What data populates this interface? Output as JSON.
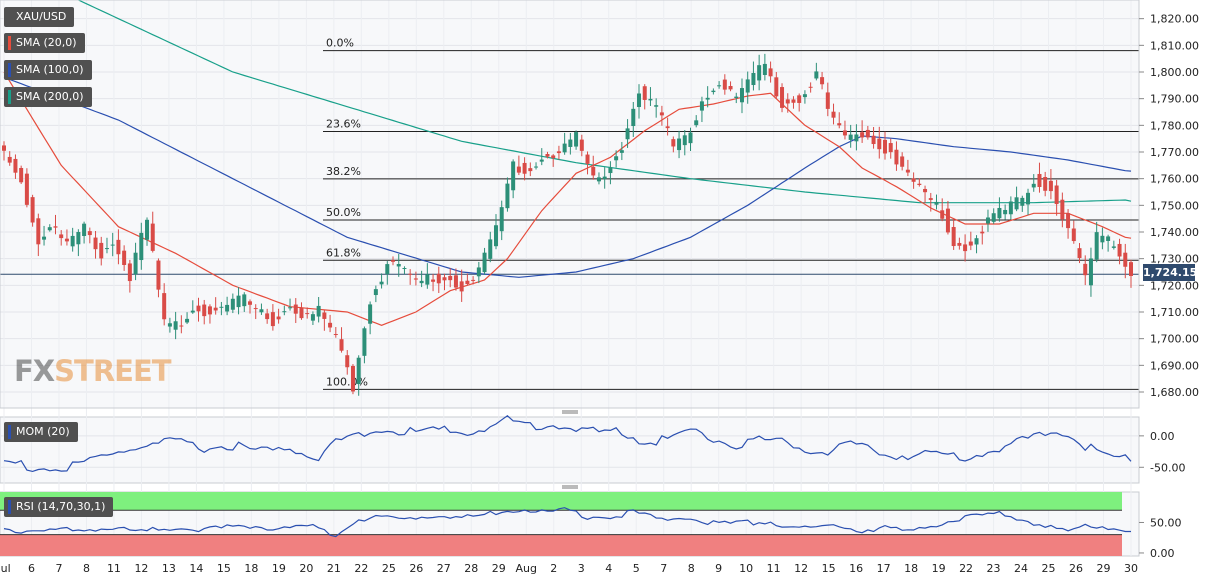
{
  "legend": {
    "symbol": "XAU/USD",
    "sma20": "SMA (20,0)",
    "sma100": "SMA (100,0)",
    "sma200": "SMA (200,0)",
    "mom": "MOM (20)",
    "rsi": "RSI (14,70,30,1)"
  },
  "colors": {
    "up": "#2c8f78",
    "down": "#d94b47",
    "sma20": "#e64c3c",
    "sma100": "#2a4fb0",
    "sma200": "#18a08a",
    "momentum": "#2a4fb0",
    "rsi": "#2a4fb0",
    "overbought_zone": "#7ef07e",
    "oversold_zone": "#f08080"
  },
  "watermark": {
    "part1": "FX",
    "part2": "STREET"
  },
  "last_price": "1,724.15",
  "chart_data": [
    {
      "type": "candlestick",
      "panel": "price",
      "ylim": [
        1674,
        1827
      ],
      "y_ticks": [
        1680,
        1690,
        1700,
        1710,
        1720,
        1730,
        1740,
        1750,
        1760,
        1770,
        1780,
        1790,
        1800,
        1810,
        1820
      ],
      "y_tick_labels": [
        "1,680.00",
        "1,690.00",
        "1,700.00",
        "1,710.00",
        "1,720.00",
        "1,730.00",
        "1,740.00",
        "1,750.00",
        "1,760.00",
        "1,770.00",
        "1,780.00",
        "1,790.00",
        "1,800.00",
        "1,810.00",
        "1,820.00"
      ],
      "x_tick_labels": [
        "Jul",
        "6",
        "7",
        "8",
        "11",
        "12",
        "13",
        "14",
        "15",
        "18",
        "19",
        "20",
        "21",
        "22",
        "25",
        "26",
        "27",
        "28",
        "29",
        "Aug",
        "2",
        "3",
        "4",
        "5",
        "7",
        "8",
        "9",
        "10",
        "11",
        "12",
        "15",
        "16",
        "17",
        "18",
        "19",
        "22",
        "23",
        "24",
        "25",
        "26",
        "29",
        "30"
      ],
      "fibonacci": [
        {
          "label": "0.0%",
          "value": 1808
        },
        {
          "label": "23.6%",
          "value": 1777.7
        },
        {
          "label": "38.2%",
          "value": 1759.9
        },
        {
          "label": "50.0%",
          "value": 1744.5
        },
        {
          "label": "61.8%",
          "value": 1729.4
        },
        {
          "label": "100.0%",
          "value": 1681
        }
      ],
      "current_price": 1724.15,
      "close_anchors": [
        1770,
        1760,
        1736,
        1743,
        1735,
        1741,
        1732,
        1736,
        1724,
        1744,
        1705,
        1706,
        1712,
        1710,
        1712,
        1715,
        1710,
        1707,
        1712,
        1708,
        1710,
        1700,
        1682,
        1715,
        1728,
        1727,
        1721,
        1723,
        1722,
        1720,
        1725,
        1741,
        1765,
        1763,
        1768,
        1770,
        1776,
        1759,
        1761,
        1773,
        1793,
        1786,
        1772,
        1774,
        1789,
        1796,
        1790,
        1797,
        1802,
        1789,
        1790,
        1800,
        1786,
        1775,
        1777,
        1773,
        1770,
        1761,
        1754,
        1747,
        1735,
        1735,
        1745,
        1748,
        1752,
        1760,
        1756,
        1742,
        1722,
        1738,
        1735,
        1724
      ],
      "sma20_anchors": [
        [
          0,
          1800
        ],
        [
          10,
          1765
        ],
        [
          20,
          1742
        ],
        [
          30,
          1732
        ],
        [
          40,
          1720
        ],
        [
          50,
          1712
        ],
        [
          60,
          1710
        ],
        [
          66,
          1705
        ],
        [
          72,
          1710
        ],
        [
          78,
          1718
        ],
        [
          84,
          1722
        ],
        [
          88,
          1730
        ],
        [
          94,
          1748
        ],
        [
          100,
          1762
        ],
        [
          106,
          1768
        ],
        [
          112,
          1778
        ],
        [
          118,
          1786
        ],
        [
          124,
          1788
        ],
        [
          130,
          1791
        ],
        [
          134,
          1792
        ],
        [
          140,
          1780
        ],
        [
          146,
          1772
        ],
        [
          150,
          1764
        ],
        [
          156,
          1757
        ],
        [
          162,
          1749
        ],
        [
          168,
          1743
        ],
        [
          174,
          1743
        ],
        [
          180,
          1747
        ],
        [
          186,
          1747
        ],
        [
          192,
          1742
        ],
        [
          196,
          1738
        ]
      ],
      "sma100_anchors": [
        [
          0,
          1798
        ],
        [
          20,
          1782
        ],
        [
          40,
          1760
        ],
        [
          60,
          1738
        ],
        [
          80,
          1725
        ],
        [
          90,
          1723
        ],
        [
          100,
          1725
        ],
        [
          110,
          1730
        ],
        [
          120,
          1738
        ],
        [
          130,
          1750
        ],
        [
          140,
          1764
        ],
        [
          146,
          1772
        ],
        [
          150,
          1776
        ],
        [
          156,
          1775
        ],
        [
          166,
          1772
        ],
        [
          176,
          1770
        ],
        [
          186,
          1767
        ],
        [
          196,
          1763
        ]
      ],
      "sma200_anchors": [
        [
          0,
          1840
        ],
        [
          20,
          1820
        ],
        [
          40,
          1800
        ],
        [
          60,
          1787
        ],
        [
          80,
          1774
        ],
        [
          100,
          1766
        ],
        [
          120,
          1760
        ],
        [
          140,
          1755
        ],
        [
          160,
          1751
        ],
        [
          180,
          1751
        ],
        [
          196,
          1752
        ]
      ],
      "sma_start_index": {
        "sma20": 0,
        "sma100": 0,
        "sma200": 10
      }
    },
    {
      "type": "line",
      "panel": "momentum",
      "name": "MOM (20)",
      "ylim": [
        -75,
        30
      ],
      "y_ticks": [
        0,
        -50
      ],
      "y_tick_labels": [
        "0.00",
        "-50.00"
      ],
      "anchors": [
        [
          0,
          -40
        ],
        [
          5,
          -50
        ],
        [
          10,
          -55
        ],
        [
          15,
          -40
        ],
        [
          20,
          -25
        ],
        [
          25,
          -15
        ],
        [
          30,
          -10
        ],
        [
          35,
          -20
        ],
        [
          40,
          -15
        ],
        [
          45,
          -25
        ],
        [
          50,
          -20
        ],
        [
          55,
          -35
        ],
        [
          58,
          -10
        ],
        [
          62,
          5
        ],
        [
          66,
          8
        ],
        [
          70,
          5
        ],
        [
          75,
          10
        ],
        [
          80,
          5
        ],
        [
          85,
          15
        ],
        [
          88,
          25
        ],
        [
          92,
          15
        ],
        [
          96,
          20
        ],
        [
          100,
          10
        ],
        [
          104,
          5
        ],
        [
          108,
          8
        ],
        [
          112,
          -10
        ],
        [
          116,
          -5
        ],
        [
          120,
          10
        ],
        [
          124,
          -5
        ],
        [
          128,
          -15
        ],
        [
          132,
          -5
        ],
        [
          136,
          -10
        ],
        [
          140,
          -20
        ],
        [
          144,
          -25
        ],
        [
          148,
          -15
        ],
        [
          152,
          -25
        ],
        [
          156,
          -30
        ],
        [
          160,
          -32
        ],
        [
          164,
          -28
        ],
        [
          168,
          -35
        ],
        [
          172,
          -25
        ],
        [
          176,
          -15
        ],
        [
          180,
          0
        ],
        [
          184,
          10
        ],
        [
          188,
          -10
        ],
        [
          192,
          -30
        ],
        [
          196,
          -35
        ]
      ]
    },
    {
      "type": "line",
      "panel": "rsi",
      "name": "RSI (14,70,30,1)",
      "ylim": [
        -5,
        100
      ],
      "y_ticks": [
        50,
        0
      ],
      "y_tick_labels": [
        "50.00",
        "0.00"
      ],
      "overbought": 70,
      "oversold": 30,
      "anchors": [
        [
          0,
          40
        ],
        [
          6,
          35
        ],
        [
          12,
          38
        ],
        [
          18,
          40
        ],
        [
          24,
          35
        ],
        [
          30,
          42
        ],
        [
          36,
          38
        ],
        [
          42,
          45
        ],
        [
          48,
          40
        ],
        [
          54,
          42
        ],
        [
          58,
          30
        ],
        [
          62,
          55
        ],
        [
          66,
          58
        ],
        [
          70,
          55
        ],
        [
          75,
          62
        ],
        [
          80,
          58
        ],
        [
          86,
          65
        ],
        [
          90,
          72
        ],
        [
          94,
          66
        ],
        [
          98,
          70
        ],
        [
          102,
          60
        ],
        [
          106,
          58
        ],
        [
          110,
          68
        ],
        [
          114,
          56
        ],
        [
          118,
          60
        ],
        [
          122,
          52
        ],
        [
          126,
          48
        ],
        [
          130,
          50
        ],
        [
          134,
          52
        ],
        [
          138,
          42
        ],
        [
          142,
          40
        ],
        [
          146,
          44
        ],
        [
          150,
          38
        ],
        [
          154,
          40
        ],
        [
          158,
          35
        ],
        [
          162,
          45
        ],
        [
          166,
          55
        ],
        [
          170,
          60
        ],
        [
          174,
          65
        ],
        [
          178,
          55
        ],
        [
          182,
          45
        ],
        [
          186,
          35
        ],
        [
          190,
          45
        ],
        [
          196,
          40
        ]
      ]
    }
  ]
}
